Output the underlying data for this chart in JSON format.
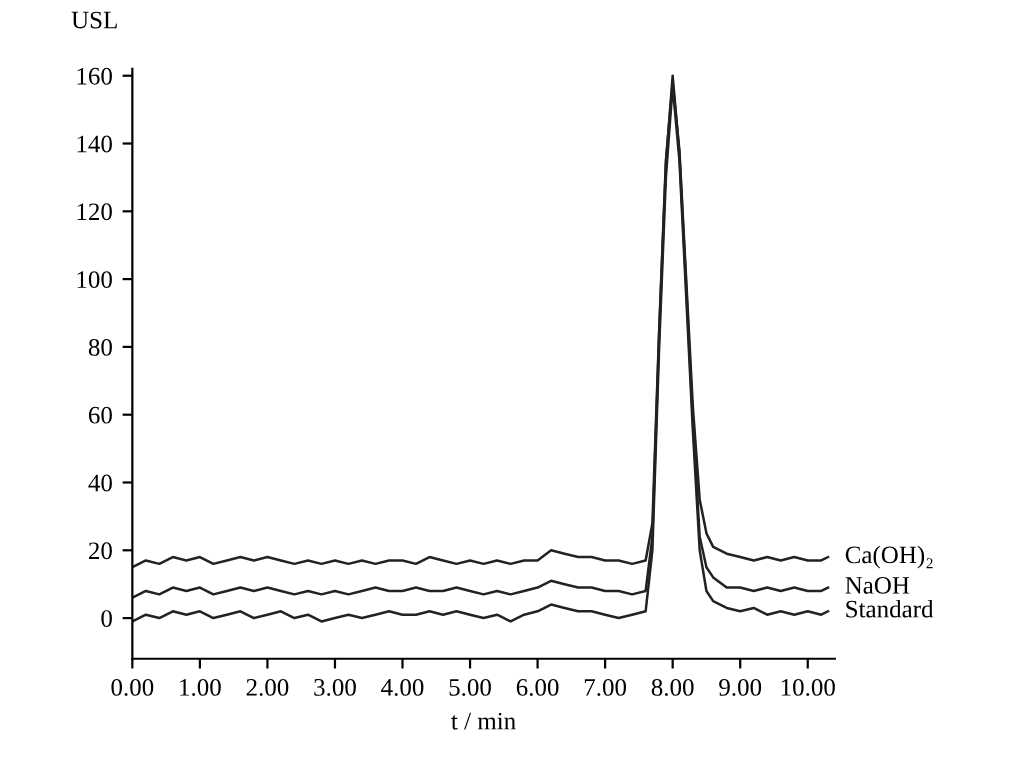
{
  "chart_data": {
    "type": "line",
    "ylabel": "USL",
    "xlabel": "t / min",
    "xlim": [
      0,
      10.4
    ],
    "ylim": [
      -12,
      162
    ],
    "xticks": [
      {
        "value": 0,
        "label": "0.00"
      },
      {
        "value": 1,
        "label": "1.00"
      },
      {
        "value": 2,
        "label": "2.00"
      },
      {
        "value": 3,
        "label": "3.00"
      },
      {
        "value": 4,
        "label": "4.00"
      },
      {
        "value": 5,
        "label": "5.00"
      },
      {
        "value": 6,
        "label": "6.00"
      },
      {
        "value": 7,
        "label": "7.00"
      },
      {
        "value": 8,
        "label": "8.00"
      },
      {
        "value": 9,
        "label": "9.00"
      },
      {
        "value": 10,
        "label": "10.00"
      }
    ],
    "yticks": [
      0,
      20,
      40,
      60,
      80,
      100,
      120,
      140,
      160
    ],
    "grid": false,
    "legend": false,
    "marker": "none",
    "line_style": "solid",
    "x": [
      0,
      0.2,
      0.4,
      0.6,
      0.8,
      1.0,
      1.2,
      1.4,
      1.6,
      1.8,
      2.0,
      2.2,
      2.4,
      2.6,
      2.8,
      3.0,
      3.2,
      3.4,
      3.6,
      3.8,
      4.0,
      4.2,
      4.4,
      4.6,
      4.8,
      5.0,
      5.2,
      5.4,
      5.6,
      5.8,
      6.0,
      6.2,
      6.4,
      6.6,
      6.8,
      7.0,
      7.2,
      7.4,
      7.6,
      7.7,
      7.8,
      7.9,
      8.0,
      8.1,
      8.2,
      8.3,
      8.4,
      8.5,
      8.6,
      8.8,
      9.0,
      9.2,
      9.4,
      9.6,
      9.8,
      10.0,
      10.2,
      10.3
    ],
    "series": [
      {
        "name": "Ca(OH)₂",
        "color": "#222222",
        "values": [
          15,
          17,
          16,
          18,
          17,
          18,
          16,
          17,
          18,
          17,
          18,
          17,
          16,
          17,
          16,
          17,
          16,
          17,
          16,
          17,
          17,
          16,
          18,
          17,
          16,
          17,
          16,
          17,
          16,
          17,
          17,
          20,
          19,
          18,
          18,
          17,
          17,
          16,
          17,
          28,
          85,
          135,
          158,
          138,
          100,
          62,
          35,
          25,
          21,
          19,
          18,
          17,
          18,
          17,
          18,
          17,
          17,
          18
        ]
      },
      {
        "name": "NaOH",
        "color": "#222222",
        "values": [
          6,
          8,
          7,
          9,
          8,
          9,
          7,
          8,
          9,
          8,
          9,
          8,
          7,
          8,
          7,
          8,
          7,
          8,
          9,
          8,
          8,
          9,
          8,
          8,
          9,
          8,
          7,
          8,
          7,
          8,
          9,
          11,
          10,
          9,
          9,
          8,
          8,
          7,
          8,
          24,
          84,
          134,
          160,
          137,
          98,
          58,
          24,
          15,
          12,
          9,
          9,
          8,
          9,
          8,
          9,
          8,
          8,
          9
        ]
      },
      {
        "name": "Standard",
        "color": "#222222",
        "values": [
          -1,
          1,
          0,
          2,
          1,
          2,
          0,
          1,
          2,
          0,
          1,
          2,
          0,
          1,
          -1,
          0,
          1,
          0,
          1,
          2,
          1,
          1,
          2,
          1,
          2,
          1,
          0,
          1,
          -1,
          1,
          2,
          4,
          3,
          2,
          2,
          1,
          0,
          1,
          2,
          20,
          80,
          130,
          157,
          135,
          95,
          55,
          20,
          8,
          5,
          3,
          2,
          3,
          1,
          2,
          1,
          2,
          1,
          2
        ]
      }
    ]
  }
}
